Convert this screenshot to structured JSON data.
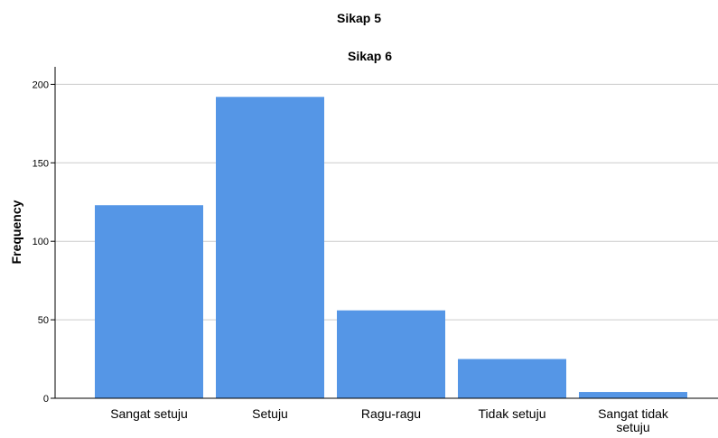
{
  "page_title": "Sikap 5",
  "chart_data": {
    "type": "bar",
    "title": "Sikap 6",
    "xlabel": "",
    "ylabel": "Frequency",
    "categories": [
      [
        "Sangat setuju"
      ],
      [
        "Setuju"
      ],
      [
        "Ragu-ragu"
      ],
      [
        "Tidak setuju"
      ],
      [
        "Sangat tidak",
        "setuju"
      ]
    ],
    "values": [
      123,
      192,
      56,
      25,
      4
    ],
    "ylim": [
      0,
      210
    ],
    "yticks": [
      0,
      50,
      100,
      150,
      200
    ],
    "grid": true,
    "bar_color": "#5596e6",
    "grid_color": "#cccccc"
  }
}
